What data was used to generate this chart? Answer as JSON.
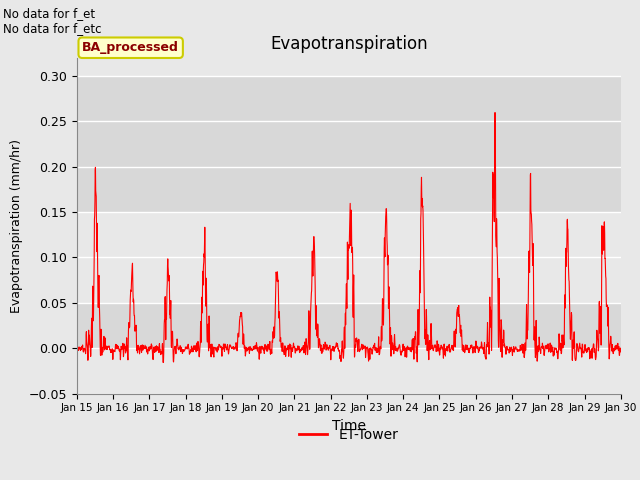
{
  "title": "Evapotranspiration",
  "xlabel": "Time",
  "ylabel": "Evapotranspiration (mm/hr)",
  "ylim": [
    -0.05,
    0.32
  ],
  "yticks": [
    -0.05,
    0.0,
    0.05,
    0.1,
    0.15,
    0.2,
    0.25,
    0.3
  ],
  "line_color": "red",
  "line_width": 0.8,
  "background_color": "#e8e8e8",
  "plot_bg_color": "#e8e8e8",
  "grid_color": "white",
  "text_annotations": [
    "No data for f_et",
    "No data for f_etc"
  ],
  "box_label": "BA_processed",
  "box_facecolor": "#ffffcc",
  "box_edgecolor": "#cccc00",
  "box_textcolor": "#8b0000",
  "legend_label": "ET-Tower",
  "legend_color": "red",
  "x_tick_labels": [
    "Jan 15",
    "Jan 16",
    "Jan 17",
    "Jan 18",
    "Jan 19",
    "Jan 20",
    "Jan 21",
    "Jan 22",
    "Jan 23",
    "Jan 24",
    "Jan 25",
    "Jan 26",
    "Jan 27",
    "Jan 28",
    "Jan 29",
    "Jan 30"
  ],
  "band_colors": [
    "#d8d8d8",
    "#e8e8e8"
  ],
  "band_ranges": [
    [
      0.15,
      0.3
    ],
    [
      0.05,
      0.15
    ],
    [
      0.0,
      0.05
    ],
    [
      -0.05,
      0.0
    ]
  ],
  "band_fills": [
    "#d8d8d8",
    "#e8e8e8",
    "#d8d8d8",
    "#e8e8e8"
  ]
}
